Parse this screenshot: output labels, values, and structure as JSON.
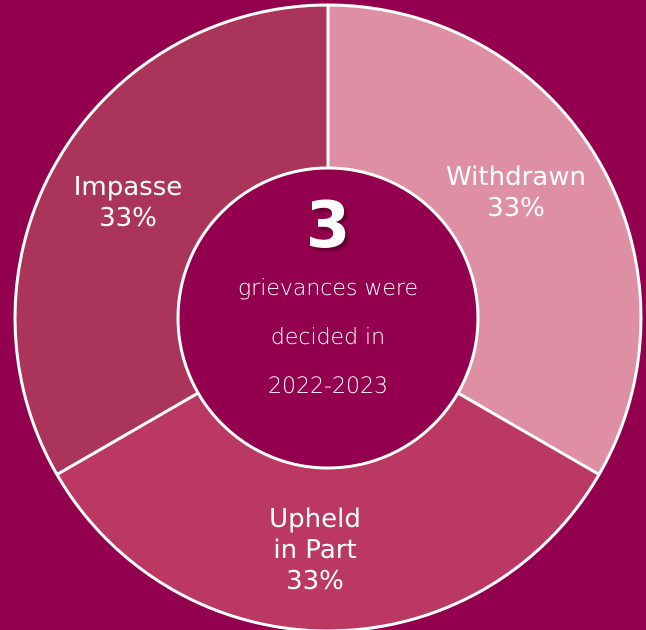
{
  "chart_data": {
    "type": "pie",
    "donut": true,
    "slices": [
      {
        "label_lines": [
          "Withdrawn"
        ],
        "value": 33,
        "display": "33%",
        "color": "#df8fa3"
      },
      {
        "label_lines": [
          "Upheld",
          "in Part"
        ],
        "value": 33,
        "display": "33%",
        "color": "#ba3862"
      },
      {
        "label_lines": [
          "Impasse"
        ],
        "value": 33,
        "display": "33%",
        "color": "#ab355a"
      }
    ],
    "center": {
      "number": "3",
      "lines": [
        "grievances were",
        "decided in",
        "2022-2023"
      ],
      "color": "#93004d"
    },
    "background": "#93004d",
    "separator_color": "#ffffff"
  }
}
